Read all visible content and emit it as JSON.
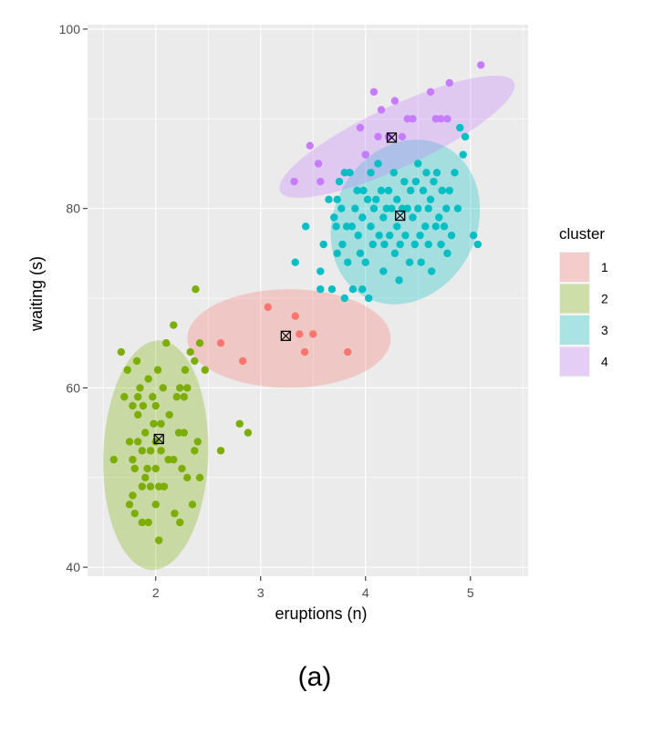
{
  "caption": "(a)",
  "chart_data": {
    "type": "scatter",
    "xlabel": "eruptions (n)",
    "ylabel": "waiting (s)",
    "xlim": [
      1.35,
      5.55
    ],
    "ylim": [
      39,
      100.5
    ],
    "x_ticks": [
      2,
      3,
      4,
      5
    ],
    "y_ticks": [
      40,
      60,
      80,
      100
    ],
    "grid": true,
    "legend": {
      "title": "cluster",
      "placement": "right",
      "labels": [
        "1",
        "2",
        "3",
        "4"
      ]
    },
    "colors": {
      "1": "#F8766D",
      "2": "#7CAE00",
      "3": "#00BFC4",
      "4": "#C77CFF",
      "panel": "#EBEBEB",
      "grid": "#FFFFFF"
    },
    "centroids": [
      {
        "cluster": "1",
        "x": 3.24,
        "y": 65.8
      },
      {
        "cluster": "2",
        "x": 2.03,
        "y": 54.3
      },
      {
        "cluster": "3",
        "x": 4.33,
        "y": 79.2
      },
      {
        "cluster": "4",
        "x": 4.25,
        "y": 87.9
      }
    ],
    "ellipses": [
      {
        "cluster": "1",
        "cx": 3.27,
        "cy": 65.5,
        "rx": 0.97,
        "ry": 5.5,
        "angle": 0
      },
      {
        "cluster": "2",
        "cx": 2.0,
        "cy": 52.5,
        "rx": 0.5,
        "ry": 12.8,
        "angle": 2
      },
      {
        "cluster": "3",
        "cx": 4.38,
        "cy": 78.5,
        "rx": 0.68,
        "ry": 9.5,
        "angle": 28
      },
      {
        "cluster": "4",
        "cx": 4.3,
        "cy": 88.0,
        "rx": 1.23,
        "ry": 3.4,
        "angle": -25
      }
    ],
    "series": [
      {
        "name": "1",
        "points": [
          [
            2.62,
            65
          ],
          [
            2.83,
            63
          ],
          [
            3.07,
            69
          ],
          [
            3.33,
            68
          ],
          [
            3.37,
            66
          ],
          [
            3.42,
            64
          ],
          [
            3.5,
            66
          ],
          [
            3.83,
            64
          ]
        ]
      },
      {
        "name": "2",
        "points": [
          [
            1.6,
            52
          ],
          [
            1.67,
            64
          ],
          [
            1.7,
            59
          ],
          [
            1.73,
            62
          ],
          [
            1.75,
            47
          ],
          [
            1.75,
            54
          ],
          [
            1.78,
            58
          ],
          [
            1.78,
            52
          ],
          [
            1.78,
            48
          ],
          [
            1.8,
            46
          ],
          [
            1.8,
            51
          ],
          [
            1.82,
            63
          ],
          [
            1.83,
            54
          ],
          [
            1.83,
            59
          ],
          [
            1.83,
            57
          ],
          [
            1.85,
            60
          ],
          [
            1.87,
            49
          ],
          [
            1.87,
            45
          ],
          [
            1.87,
            53
          ],
          [
            1.88,
            58
          ],
          [
            1.9,
            50
          ],
          [
            1.9,
            55
          ],
          [
            1.92,
            51
          ],
          [
            1.93,
            45
          ],
          [
            1.93,
            61
          ],
          [
            1.95,
            49
          ],
          [
            1.95,
            53
          ],
          [
            1.97,
            59
          ],
          [
            1.98,
            56
          ],
          [
            2.0,
            54
          ],
          [
            2.0,
            58
          ],
          [
            2.0,
            51
          ],
          [
            2.0,
            47
          ],
          [
            2.02,
            62
          ],
          [
            2.03,
            49
          ],
          [
            2.03,
            43
          ],
          [
            2.05,
            56
          ],
          [
            2.05,
            53
          ],
          [
            2.07,
            60
          ],
          [
            2.08,
            49
          ],
          [
            2.1,
            65
          ],
          [
            2.12,
            52
          ],
          [
            2.13,
            57
          ],
          [
            2.17,
            52
          ],
          [
            2.17,
            67
          ],
          [
            2.18,
            46
          ],
          [
            2.2,
            59
          ],
          [
            2.22,
            55
          ],
          [
            2.23,
            60
          ],
          [
            2.23,
            45
          ],
          [
            2.25,
            51
          ],
          [
            2.27,
            59
          ],
          [
            2.27,
            55
          ],
          [
            2.28,
            62
          ],
          [
            2.3,
            50
          ],
          [
            2.3,
            60
          ],
          [
            2.33,
            64
          ],
          [
            2.35,
            47
          ],
          [
            2.37,
            53
          ],
          [
            2.37,
            63
          ],
          [
            2.38,
            71
          ],
          [
            2.4,
            54
          ],
          [
            2.42,
            50
          ],
          [
            2.42,
            65
          ],
          [
            2.47,
            62
          ],
          [
            2.62,
            53
          ],
          [
            2.8,
            56
          ],
          [
            2.88,
            55
          ]
        ]
      },
      {
        "name": "3",
        "points": [
          [
            3.33,
            74
          ],
          [
            3.43,
            78
          ],
          [
            3.57,
            73
          ],
          [
            3.57,
            71
          ],
          [
            3.6,
            76
          ],
          [
            3.65,
            81
          ],
          [
            3.68,
            71
          ],
          [
            3.7,
            79
          ],
          [
            3.72,
            78
          ],
          [
            3.73,
            81
          ],
          [
            3.73,
            75
          ],
          [
            3.75,
            83
          ],
          [
            3.77,
            80
          ],
          [
            3.78,
            76
          ],
          [
            3.8,
            84
          ],
          [
            3.8,
            70
          ],
          [
            3.82,
            78
          ],
          [
            3.83,
            74
          ],
          [
            3.85,
            84
          ],
          [
            3.87,
            78
          ],
          [
            3.88,
            71
          ],
          [
            3.9,
            80
          ],
          [
            3.92,
            82
          ],
          [
            3.93,
            77
          ],
          [
            3.95,
            75
          ],
          [
            3.97,
            79
          ],
          [
            3.97,
            71
          ],
          [
            3.98,
            82
          ],
          [
            4.0,
            74
          ],
          [
            4.0,
            86
          ],
          [
            4.02,
            81
          ],
          [
            4.03,
            70
          ],
          [
            4.05,
            78
          ],
          [
            4.05,
            84
          ],
          [
            4.07,
            76
          ],
          [
            4.08,
            80
          ],
          [
            4.1,
            81
          ],
          [
            4.12,
            85
          ],
          [
            4.13,
            77
          ],
          [
            4.15,
            82
          ],
          [
            4.17,
            79
          ],
          [
            4.17,
            73
          ],
          [
            4.18,
            76
          ],
          [
            4.2,
            80
          ],
          [
            4.22,
            82
          ],
          [
            4.23,
            77
          ],
          [
            4.25,
            80
          ],
          [
            4.27,
            84
          ],
          [
            4.28,
            75
          ],
          [
            4.3,
            81
          ],
          [
            4.3,
            78
          ],
          [
            4.32,
            72
          ],
          [
            4.33,
            76
          ],
          [
            4.35,
            80
          ],
          [
            4.37,
            83
          ],
          [
            4.38,
            77
          ],
          [
            4.4,
            80
          ],
          [
            4.42,
            74
          ],
          [
            4.43,
            82
          ],
          [
            4.45,
            79
          ],
          [
            4.47,
            76
          ],
          [
            4.48,
            83
          ],
          [
            4.5,
            80
          ],
          [
            4.5,
            85
          ],
          [
            4.52,
            77
          ],
          [
            4.53,
            74
          ],
          [
            4.55,
            82
          ],
          [
            4.57,
            78
          ],
          [
            4.58,
            84
          ],
          [
            4.6,
            80
          ],
          [
            4.6,
            76
          ],
          [
            4.62,
            81
          ],
          [
            4.63,
            73
          ],
          [
            4.65,
            83
          ],
          [
            4.67,
            78
          ],
          [
            4.68,
            84
          ],
          [
            4.7,
            79
          ],
          [
            4.72,
            76
          ],
          [
            4.73,
            82
          ],
          [
            4.75,
            78
          ],
          [
            4.77,
            80
          ],
          [
            4.78,
            75
          ],
          [
            4.8,
            82
          ],
          [
            4.82,
            77
          ],
          [
            4.85,
            84
          ],
          [
            4.88,
            80
          ],
          [
            4.9,
            89
          ],
          [
            4.93,
            86
          ],
          [
            4.95,
            88
          ],
          [
            5.03,
            77
          ],
          [
            5.07,
            76
          ]
        ]
      },
      {
        "name": "4",
        "points": [
          [
            3.32,
            83
          ],
          [
            3.47,
            87
          ],
          [
            3.55,
            85
          ],
          [
            3.57,
            83
          ],
          [
            3.95,
            89
          ],
          [
            4.0,
            86
          ],
          [
            4.08,
            93
          ],
          [
            4.12,
            88
          ],
          [
            4.15,
            91
          ],
          [
            4.22,
            88
          ],
          [
            4.28,
            92
          ],
          [
            4.35,
            88
          ],
          [
            4.4,
            90
          ],
          [
            4.45,
            90
          ],
          [
            4.62,
            93
          ],
          [
            4.67,
            90
          ],
          [
            4.72,
            90
          ],
          [
            4.78,
            90
          ],
          [
            4.8,
            94
          ],
          [
            5.1,
            96
          ]
        ]
      }
    ]
  }
}
